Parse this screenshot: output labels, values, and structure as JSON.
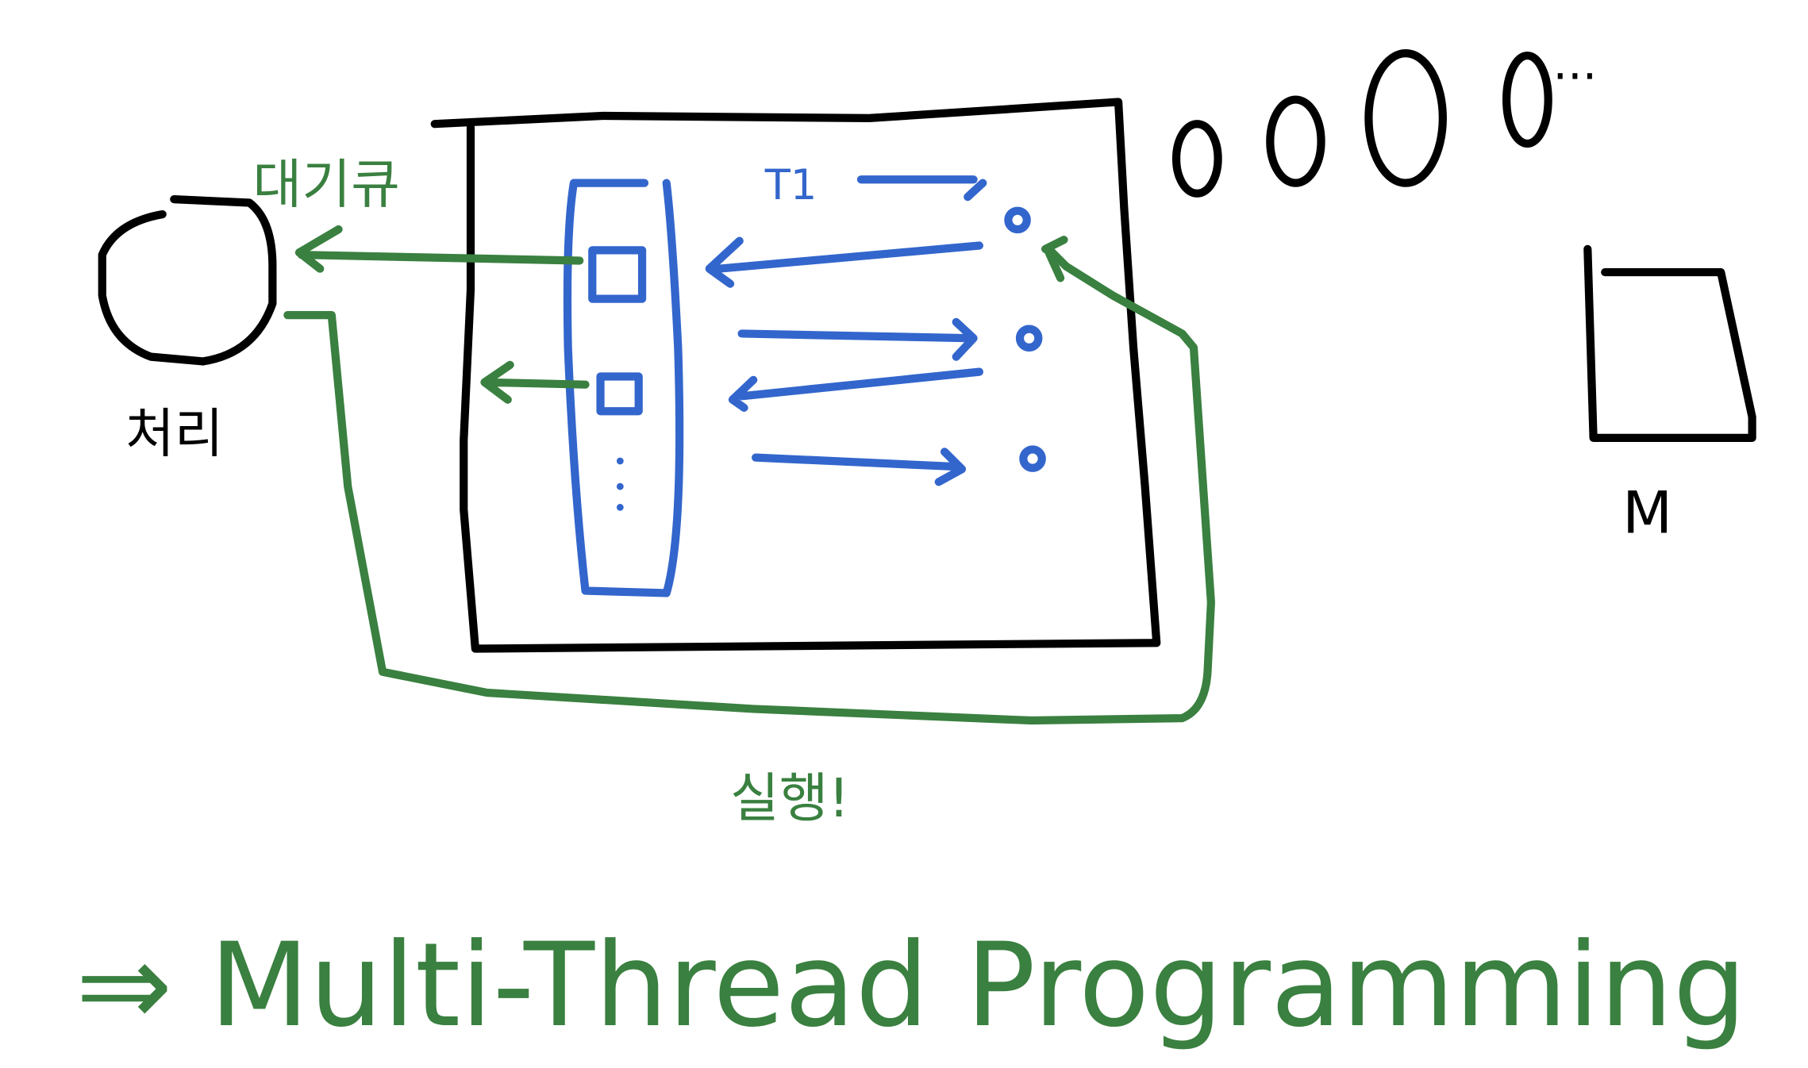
{
  "labels": {
    "queue": "대기큐",
    "core": "처리",
    "thread": "T1",
    "run": "실행!",
    "memory": "M",
    "ellipsis": "...",
    "conclusion": "⇒ Multi-Thread Programming"
  }
}
